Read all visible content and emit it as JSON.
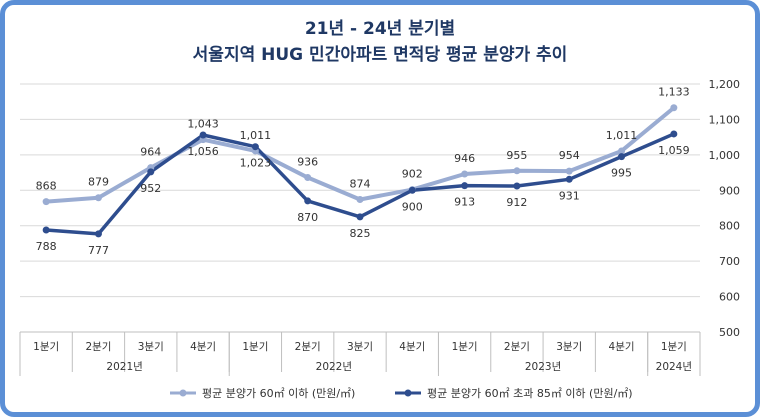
{
  "chart_data": {
    "type": "line",
    "title": "21년 - 24년 분기별",
    "subtitle": "서울지역 HUG 민간아파트 면적당 평균 분양가 추이",
    "categories": [
      "1분기",
      "2분기",
      "3분기",
      "4분기",
      "1분기",
      "2분기",
      "3분기",
      "4분기",
      "1분기",
      "2분기",
      "3분기",
      "4분기",
      "1분기"
    ],
    "years": [
      {
        "label": "2021년",
        "count": 4
      },
      {
        "label": "2022년",
        "count": 4
      },
      {
        "label": "2023년",
        "count": 4
      },
      {
        "label": "2024년",
        "count": 1
      }
    ],
    "ylim": [
      500,
      1200
    ],
    "yticks": [
      "500",
      "600",
      "700",
      "800",
      "900",
      "1,000",
      "1,100",
      "1,200"
    ],
    "ytick_values": [
      500,
      600,
      700,
      800,
      900,
      1000,
      1100,
      1200
    ],
    "series": [
      {
        "name": "평균 분양가 60㎡ 이하 (만원/㎡)",
        "color": "#9aacd2",
        "values": [
          868,
          879,
          964,
          1043,
          1011,
          936,
          874,
          902,
          946,
          955,
          954,
          1011,
          1133
        ],
        "labels": [
          "868",
          "879",
          "964",
          "1,043",
          "1,011",
          "936",
          "874",
          "902",
          "946",
          "955",
          "954",
          "1,011",
          "1,133"
        ],
        "label_pos": [
          "above",
          "above",
          "above",
          "above",
          "above",
          "above",
          "above",
          "above",
          "above",
          "above",
          "above",
          "above",
          "above"
        ]
      },
      {
        "name": "평균 분양가 60㎡ 초과 85㎡ 이하 (만원/㎡)",
        "color": "#2e4d8e",
        "values": [
          788,
          777,
          952,
          1056,
          1023,
          870,
          825,
          900,
          913,
          912,
          931,
          995,
          1059
        ],
        "labels": [
          "788",
          "777",
          "952",
          "1,056",
          "1,023",
          "870",
          "825",
          "900",
          "913",
          "912",
          "931",
          "995",
          "1,059"
        ],
        "label_pos": [
          "below",
          "below",
          "below",
          "below",
          "below",
          "below",
          "below",
          "below",
          "below",
          "below",
          "below",
          "below",
          "below"
        ]
      }
    ],
    "grid": true,
    "legend": "bottom"
  }
}
